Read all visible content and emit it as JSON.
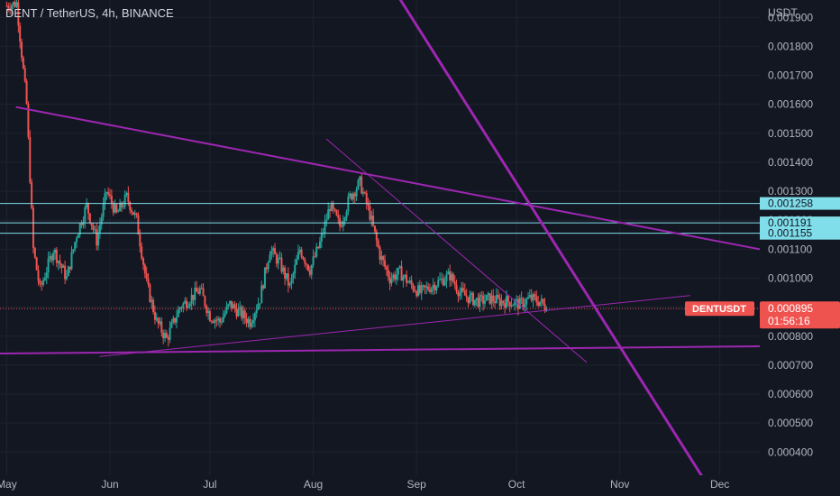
{
  "header": {
    "title": "DENT / TetherUS, 4h, BINANCE",
    "yunit": "USDT"
  },
  "chart_data": {
    "type": "candlestick",
    "symbol": "DENTUSDT",
    "interval": "4h",
    "exchange": "BINANCE",
    "ylim": [
      0.00032,
      0.00196
    ],
    "y_ticks": [
      "0.001900",
      "0.001800",
      "0.001700",
      "0.001600",
      "0.001500",
      "0.001400",
      "0.001300",
      "0.001200",
      "0.001100",
      "0.001000",
      "0.000900",
      "0.000800",
      "0.000700",
      "0.000600",
      "0.000500",
      "0.000400"
    ],
    "x_ticks": [
      {
        "label": "May",
        "day": 0
      },
      {
        "label": "Jun",
        "day": 31
      },
      {
        "label": "Jul",
        "day": 61
      },
      {
        "label": "Aug",
        "day": 92
      },
      {
        "label": "Sep",
        "day": 123
      },
      {
        "label": "Oct",
        "day": 153
      },
      {
        "label": "Nov",
        "day": 184
      },
      {
        "label": "Dec",
        "day": 214
      }
    ],
    "x_range_days": [
      -2,
      226
    ],
    "last_price": "0.000895",
    "last_price_value": 0.000895,
    "countdown": "01:56:16",
    "price_labels": [
      {
        "text": "0.001258",
        "value": 0.001258
      },
      {
        "text": "0.001191",
        "value": 0.001191
      },
      {
        "text": "0.001155",
        "value": 0.001155
      }
    ],
    "horizontal_lines": [
      0.001258,
      0.001191,
      0.001155
    ],
    "price_series_keypoints": [
      {
        "day": 0,
        "value": 0.00194
      },
      {
        "day": 3,
        "value": 0.00195
      },
      {
        "day": 6,
        "value": 0.0016
      },
      {
        "day": 8,
        "value": 0.0011
      },
      {
        "day": 10,
        "value": 0.00096
      },
      {
        "day": 14,
        "value": 0.0011
      },
      {
        "day": 18,
        "value": 0.001
      },
      {
        "day": 21,
        "value": 0.00115
      },
      {
        "day": 24,
        "value": 0.00125
      },
      {
        "day": 27,
        "value": 0.00113
      },
      {
        "day": 30,
        "value": 0.0013
      },
      {
        "day": 33,
        "value": 0.00122
      },
      {
        "day": 36,
        "value": 0.00128
      },
      {
        "day": 39,
        "value": 0.0012
      },
      {
        "day": 42,
        "value": 0.00098
      },
      {
        "day": 45,
        "value": 0.00085
      },
      {
        "day": 48,
        "value": 0.00079
      },
      {
        "day": 52,
        "value": 0.0009
      },
      {
        "day": 55,
        "value": 0.00093
      },
      {
        "day": 58,
        "value": 0.00096
      },
      {
        "day": 61,
        "value": 0.00087
      },
      {
        "day": 64,
        "value": 0.00085
      },
      {
        "day": 67,
        "value": 0.00091
      },
      {
        "day": 70,
        "value": 0.00088
      },
      {
        "day": 73,
        "value": 0.00085
      },
      {
        "day": 76,
        "value": 0.00093
      },
      {
        "day": 79,
        "value": 0.0011
      },
      {
        "day": 82,
        "value": 0.00105
      },
      {
        "day": 85,
        "value": 0.00097
      },
      {
        "day": 88,
        "value": 0.0011
      },
      {
        "day": 91,
        "value": 0.00103
      },
      {
        "day": 94,
        "value": 0.00112
      },
      {
        "day": 97,
        "value": 0.00125
      },
      {
        "day": 100,
        "value": 0.00118
      },
      {
        "day": 103,
        "value": 0.00128
      },
      {
        "day": 106,
        "value": 0.00133
      },
      {
        "day": 109,
        "value": 0.00122
      },
      {
        "day": 112,
        "value": 0.00108
      },
      {
        "day": 115,
        "value": 0.001
      },
      {
        "day": 118,
        "value": 0.00102
      },
      {
        "day": 121,
        "value": 0.00098
      },
      {
        "day": 124,
        "value": 0.00095
      },
      {
        "day": 127,
        "value": 0.00097
      },
      {
        "day": 130,
        "value": 0.00099
      },
      {
        "day": 133,
        "value": 0.00101
      },
      {
        "day": 136,
        "value": 0.00095
      },
      {
        "day": 139,
        "value": 0.00093
      },
      {
        "day": 142,
        "value": 0.00092
      },
      {
        "day": 145,
        "value": 0.00093
      },
      {
        "day": 148,
        "value": 0.00092
      },
      {
        "day": 151,
        "value": 0.00092
      },
      {
        "day": 154,
        "value": 0.00091
      },
      {
        "day": 157,
        "value": 0.00093
      },
      {
        "day": 160,
        "value": 0.00092
      },
      {
        "day": 162,
        "value": 0.000895
      }
    ],
    "trendlines": [
      {
        "name": "upper-resistance",
        "color": "#9c27b0",
        "width": 2,
        "from": {
          "day": 3,
          "value": 0.00159
        },
        "to": {
          "day": 226,
          "value": 0.0011
        }
      },
      {
        "name": "steep-diagonal",
        "color": "#9c27b0",
        "width": 3,
        "from": {
          "day": 116,
          "value": 0.002
        },
        "to": {
          "day": 209,
          "value": 0.00031
        }
      },
      {
        "name": "mid-descending",
        "color": "#9c27b0",
        "width": 1,
        "from": {
          "day": 96,
          "value": 0.00148
        },
        "to": {
          "day": 174,
          "value": 0.00071
        }
      },
      {
        "name": "rising-support",
        "color": "#9c27b0",
        "width": 1,
        "from": {
          "day": 28,
          "value": 0.00073
        },
        "to": {
          "day": 205,
          "value": 0.00094
        }
      },
      {
        "name": "flat-support",
        "color": "#9c27b0",
        "width": 2,
        "from": {
          "day": -2,
          "value": 0.00074
        },
        "to": {
          "day": 226,
          "value": 0.000765
        }
      }
    ]
  },
  "colors": {
    "background": "#131722",
    "grid": "#1f2330",
    "up": "#26a69a",
    "down": "#ef5350",
    "trendline": "#9c27b0",
    "hline": "#80deea",
    "price_label_bg": "#80deea",
    "last_price_bg": "#ef5350",
    "axis_text": "#b2b5be"
  }
}
